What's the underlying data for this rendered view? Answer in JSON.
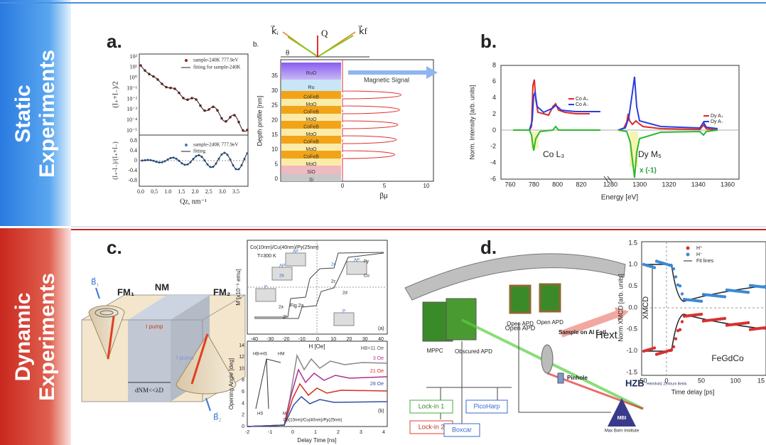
{
  "sidebar": {
    "static": [
      "Static",
      "Experiments"
    ],
    "dynamic": [
      "Dynamic",
      "Experiments"
    ]
  },
  "panel_a": {
    "label": "a.",
    "reflectivity": {
      "y_label": "(I₊+I₋)/2",
      "yticks": [
        "10²",
        "10¹",
        "10⁰",
        "10⁻¹",
        "10⁻²",
        "10⁻³",
        "10⁻⁴",
        "10⁻⁵"
      ],
      "legend": [
        "sample-240K 777.9eV",
        "fitting for sample-240K"
      ]
    },
    "asymmetry": {
      "y_label": "(I₊-I₋)/(I₊+I₋)",
      "yticks": [
        "0.8",
        "0.4",
        "0",
        "-0.4",
        "-0.8"
      ],
      "legend": [
        "sample-240K 777.9eV",
        "fitting"
      ],
      "xticks": [
        "0.0",
        "0.5",
        "1.0",
        "1.5",
        "2.0",
        "2.5",
        "3.0",
        "3.5"
      ],
      "x_label": "Qz, nm⁻¹"
    },
    "depth_profile": {
      "label": "b.",
      "theta": "θ",
      "q": "Q",
      "k_i": "k⃗ᵢ",
      "k_f": "k⃗f",
      "layers": [
        "RuO",
        "Ru",
        "CoFeB",
        "MgO",
        "CoFeB",
        "MgO",
        "CoFeB",
        "MgO",
        "CoFeB",
        "MgO",
        "CoFeB",
        "MgO",
        "SiO",
        "Si"
      ],
      "signal": "Magnetic Signal",
      "y_label": "Depth profile [nm]",
      "yticks": [
        "0",
        "5",
        "10",
        "15",
        "20",
        "25",
        "30",
        "35"
      ],
      "xticks": [
        "0",
        "5",
        "10"
      ],
      "x_label": "βμ"
    }
  },
  "panel_b": {
    "label": "b.",
    "y_label": "Norm. Intensity [arb. units]",
    "x_label": "Energy [eV]",
    "yticks": [
      "8",
      "6",
      "4",
      "2",
      "0",
      "-2",
      "-4",
      "-6"
    ],
    "xticks_co": [
      "760",
      "780",
      "800",
      "820"
    ],
    "xticks_dy": [
      "1280",
      "1300",
      "1320",
      "1340",
      "1360"
    ],
    "co_edge": "Co L₃",
    "dy_edge": "Dy M₅",
    "scale_note": "x (-1)",
    "legend_co": [
      "Co A₊",
      "Co A₋"
    ],
    "legend_dy": [
      "Dy A₊",
      "Dy A₋"
    ]
  },
  "panel_c": {
    "label": "c.",
    "illustration": {
      "fm1": "FM₁",
      "nm": "NM",
      "fm2": "FM₂",
      "thickness": "dNM<<λD",
      "b1": "B⃗₁",
      "b2": "B⃗₂",
      "i_pump": "I pump",
      "i_pump2": "I pump"
    },
    "hysteresis": {
      "sample": "Co(10nm)/Cu(40nm)/Py(25nm)",
      "temperature": "T=300 K",
      "y_label": "M [x10⁻⁵ emu]",
      "x_label": "H [Oe]",
      "xticks": [
        "-40",
        "-30",
        "-20",
        "-10",
        "0",
        "10",
        "20",
        "30",
        "40"
      ],
      "figure": "Fig.2a",
      "panel": "(a)",
      "states": [
        "AP",
        "P",
        "AP",
        "P",
        "AP"
      ],
      "points": [
        "2a",
        "2b",
        "2c",
        "2d",
        "2e",
        "2f"
      ],
      "layers": [
        "Co",
        "Py"
      ]
    },
    "opening_angle": {
      "y_label": "Opening Angle [deg]",
      "x_label": "Delay Time [ns]",
      "yticks": [
        "0",
        "2",
        "4",
        "6",
        "8",
        "10",
        "12",
        "14"
      ],
      "xticks": [
        "-2",
        "-1",
        "0",
        "1",
        "2",
        "3",
        "4"
      ],
      "fields": [
        "HB=11 Oe",
        "3 Oe",
        "21 Oe",
        "28 Oe"
      ],
      "panel": "(b)",
      "sample": "Co(10nm)/Cu(40nm)/Py(25nm)",
      "inset": [
        "HB+HS",
        "HM",
        "HS",
        "M"
      ]
    }
  },
  "panel_d": {
    "label": "d.",
    "setup": {
      "open_apd": [
        "Open APD",
        "Open APD"
      ],
      "mppc": "MPPC",
      "obscured_apd": "Obscured APD",
      "sample": "Sample on Al Foil",
      "pinhole": "Pinhole",
      "field": "Hext",
      "lock_in_1": "Lock-in 1",
      "lock_in_2": "Lock-in 2",
      "picoharp": "PicoHarp",
      "boxcar": "Boxcar",
      "hzb": "HZB",
      "hzb_name": "Helmholtz Zentrum Berlin",
      "mbi": "MBI",
      "mbi_name": "Max Born Institute"
    },
    "xmcd": {
      "y_label": "Norm XMCD [arb. units]",
      "x_label": "Time delay [ps]",
      "yticks": [
        "1.5",
        "1.0",
        "0.5",
        "0.0",
        "-0.5",
        "-1.0",
        "-1.5"
      ],
      "xticks": [
        "-50",
        "0",
        "50",
        "100",
        "15"
      ],
      "legend": [
        "H⁺",
        "H⁻",
        "Fit lines"
      ],
      "annotation": "XMCD",
      "sample": "FeGdCo"
    }
  }
}
